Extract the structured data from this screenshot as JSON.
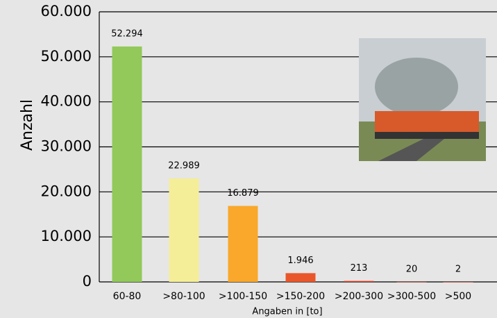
{
  "chart_data": {
    "type": "bar",
    "categories": [
      "60-80",
      ">80-100",
      ">100-150",
      ">150-200",
      ">200-300",
      ">300-500",
      ">500"
    ],
    "values": [
      52294,
      22989,
      16879,
      1946,
      213,
      20,
      2
    ],
    "value_labels": [
      "52.294",
      "22.989",
      "16.879",
      "1.946",
      "213",
      "20",
      "2"
    ],
    "colors": [
      "#92c95a",
      "#f5ee98",
      "#f9a82b",
      "#e9562a",
      "#e23d22",
      "#d9331f",
      "#d9331f"
    ],
    "y_label": "Anzahl",
    "x_label": "Angaben in [to]",
    "ylim": [
      0,
      60000
    ],
    "yticks": [
      0,
      {
        "value": 10000,
        "label": "10.000"
      },
      {
        "value": 20000,
        "label": "20.000"
      },
      {
        "value": 30000,
        "label": "30.000"
      },
      {
        "value": 40000,
        "label": "40.000"
      },
      {
        "value": 50000,
        "label": "50.000"
      },
      {
        "value": 60000,
        "label": "60.000"
      }
    ],
    "grid": true
  }
}
